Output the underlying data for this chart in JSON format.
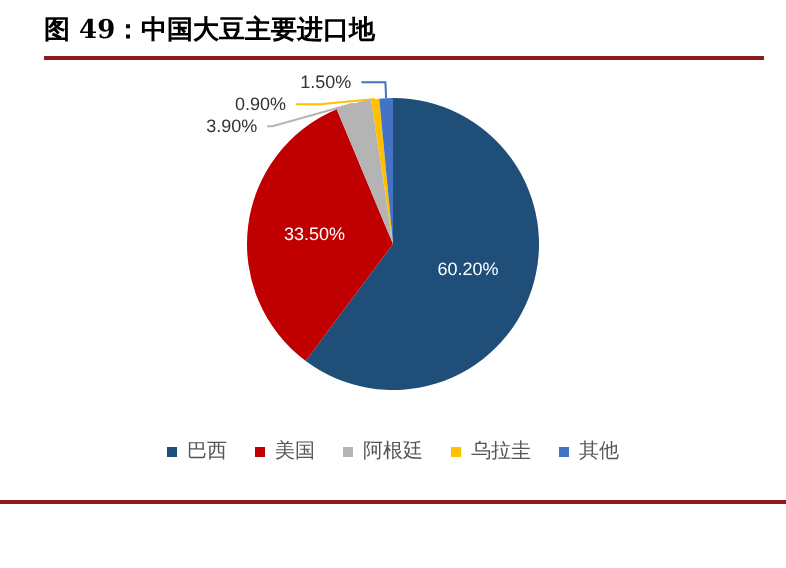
{
  "chart_data": {
    "type": "pie",
    "title": "图 49：中国大豆主要进口地",
    "categories": [
      "巴西",
      "美国",
      "阿根廷",
      "乌拉圭",
      "其他"
    ],
    "values": [
      60.2,
      33.5,
      3.9,
      0.9,
      1.5
    ],
    "value_labels": [
      "60.20%",
      "33.50%",
      "3.90%",
      "0.90%",
      "1.50%"
    ],
    "colors": [
      "#1f4e79",
      "#c00000",
      "#b4b4b4",
      "#ffc000",
      "#4472c4"
    ],
    "legend": "bottom"
  }
}
